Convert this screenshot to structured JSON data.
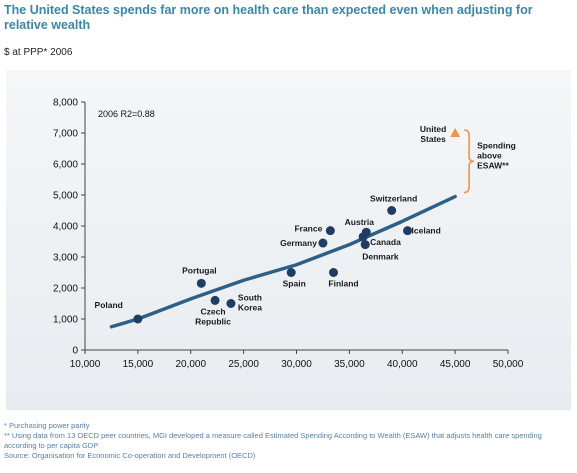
{
  "title": "The United States spends far more on health care than expected even when adjusting for relative wealth",
  "subtitle": "$ at PPP* 2006",
  "colors": {
    "accent_title": "#3a87a8",
    "trend_line": "#2e5f86",
    "points": "#1f3d63",
    "outlier": "#f0944a"
  },
  "chart_data": {
    "type": "scatter",
    "title": "",
    "xlabel": "",
    "ylabel": "",
    "xlim": [
      10000,
      50000
    ],
    "ylim": [
      0,
      8000
    ],
    "xticks": [
      "10,000",
      "15,000",
      "20,000",
      "25,000",
      "30,000",
      "35,000",
      "40,000",
      "45,000",
      "50,000"
    ],
    "yticks": [
      "0",
      "1,000",
      "2,000",
      "3,000",
      "4,000",
      "5,000",
      "6,000",
      "7,000",
      "8,000"
    ],
    "annotation": "2006 R2=0.88",
    "grid": false,
    "points": [
      {
        "label": "Poland",
        "x": 15000,
        "y": 1000
      },
      {
        "label": "Portugal",
        "x": 21000,
        "y": 2150
      },
      {
        "label": "Czech Republic",
        "x": 22300,
        "y": 1600
      },
      {
        "label": "South Korea",
        "x": 23800,
        "y": 1500
      },
      {
        "label": "Spain",
        "x": 29500,
        "y": 2500
      },
      {
        "label": "Finland",
        "x": 33500,
        "y": 2500
      },
      {
        "label": "Germany",
        "x": 32500,
        "y": 3450
      },
      {
        "label": "France",
        "x": 33200,
        "y": 3850
      },
      {
        "label": "Austria",
        "x": 36600,
        "y": 3800
      },
      {
        "label": "Canada",
        "x": 36300,
        "y": 3650
      },
      {
        "label": "Denmark",
        "x": 36500,
        "y": 3400
      },
      {
        "label": "Iceland",
        "x": 40500,
        "y": 3850
      },
      {
        "label": "Switzerland",
        "x": 39000,
        "y": 4500
      }
    ],
    "outlier": {
      "label": "United States",
      "x": 45000,
      "y": 7000
    },
    "trend_line": [
      [
        12500,
        750
      ],
      [
        15000,
        1000
      ],
      [
        20000,
        1650
      ],
      [
        25000,
        2250
      ],
      [
        30000,
        2750
      ],
      [
        35000,
        3400
      ],
      [
        40000,
        4150
      ],
      [
        45000,
        4950
      ]
    ],
    "bracket_label": "Spending above ESAW**"
  },
  "notes": {
    "line1": "* Purchasing power parity",
    "line2": "** Using data from 13 OECD peer countries, MGI developed a measure called Estimated Spending According to Wealth (ESAW) that adjusts health care spending according to per capita GDP",
    "line3": "Source: Organisation for Economic Co-operation and Development (OECD)"
  }
}
